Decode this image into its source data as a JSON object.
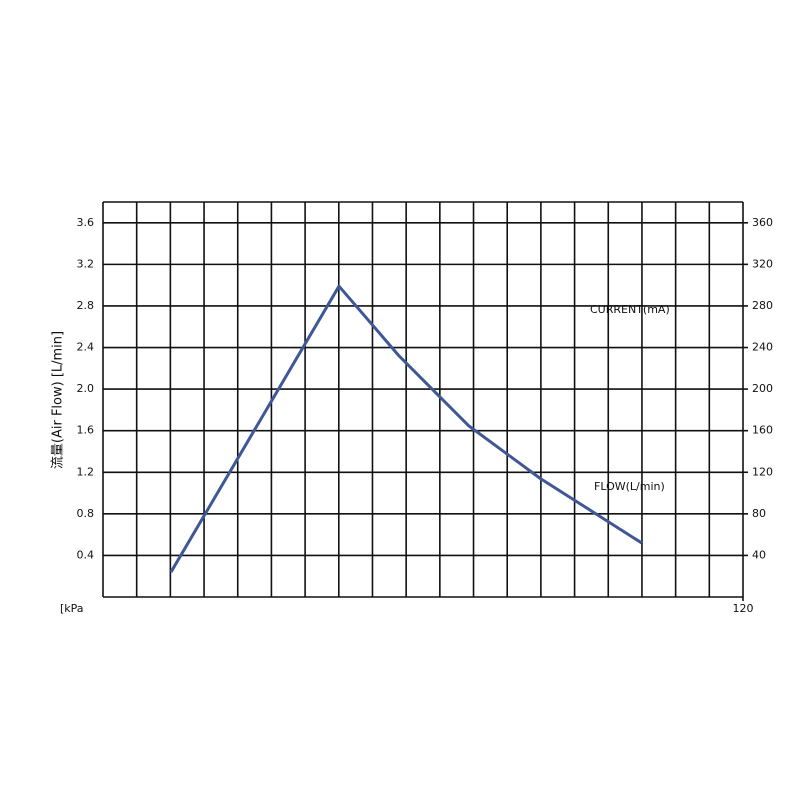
{
  "chart_data": {
    "type": "line",
    "ylabel": "流量(Air Flow) [L/min]",
    "xlabel": "[kPa",
    "annotations": [
      "CURRENT(mA)",
      "FLOW(L/min)"
    ],
    "x": [
      12.75,
      44.25,
      55.5,
      68.5,
      82,
      101
    ],
    "values": [
      0.24,
      2.99,
      2.32,
      1.65,
      1.14,
      0.52
    ],
    "color": "#3f5895",
    "xlim": [
      0,
      120
    ],
    "xticks": [
      120
    ],
    "ylim": [
      0,
      3.8
    ],
    "yticks": [
      0.4,
      0.8,
      1.2,
      1.6,
      {
        "value": 2,
        "label": "2.0"
      },
      2.4,
      2.8,
      3.2,
      3.6
    ],
    "y2lim": [
      0,
      380
    ],
    "y2ticks": [
      40,
      80,
      120,
      160,
      200,
      240,
      280,
      320,
      360
    ],
    "grid": true
  }
}
